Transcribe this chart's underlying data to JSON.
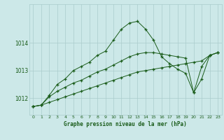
{
  "bg_color": "#cce8e8",
  "grid_color": "#aacccc",
  "line_color": "#1a5c1a",
  "title": "Graphe pression niveau de la mer (hPa)",
  "yticks": [
    1012,
    1013,
    1014
  ],
  "ylim": [
    1011.4,
    1015.4
  ],
  "xlim": [
    -0.5,
    23.5
  ],
  "series1_x": [
    0,
    1,
    2,
    3,
    4,
    5,
    6,
    7,
    8,
    9,
    10,
    11,
    12,
    13,
    14,
    15,
    16,
    17,
    18,
    19,
    20,
    21,
    22,
    23
  ],
  "series1_y": [
    1011.7,
    1011.75,
    1011.85,
    1011.95,
    1012.05,
    1012.15,
    1012.25,
    1012.35,
    1012.45,
    1012.55,
    1012.65,
    1012.75,
    1012.85,
    1012.95,
    1013.0,
    1013.05,
    1013.1,
    1013.15,
    1013.2,
    1013.25,
    1013.3,
    1013.35,
    1013.55,
    1013.65
  ],
  "series2_x": [
    0,
    1,
    2,
    3,
    4,
    5,
    6,
    7,
    8,
    9,
    10,
    11,
    12,
    13,
    14,
    15,
    16,
    17,
    18,
    19,
    20,
    21,
    22,
    23
  ],
  "series2_y": [
    1011.7,
    1011.75,
    1012.05,
    1012.25,
    1012.4,
    1012.55,
    1012.65,
    1012.8,
    1012.95,
    1013.05,
    1013.2,
    1013.35,
    1013.5,
    1013.6,
    1013.65,
    1013.65,
    1013.6,
    1013.55,
    1013.5,
    1013.45,
    1012.2,
    1013.15,
    1013.55,
    1013.65
  ],
  "series3_x": [
    0,
    1,
    2,
    3,
    4,
    5,
    6,
    7,
    8,
    9,
    10,
    11,
    12,
    13,
    14,
    15,
    16,
    17,
    18,
    19,
    20,
    21,
    22,
    23
  ],
  "series3_y": [
    1011.7,
    1011.75,
    1012.1,
    1012.5,
    1012.7,
    1013.0,
    1013.15,
    1013.3,
    1013.55,
    1013.7,
    1014.1,
    1014.5,
    1014.72,
    1014.78,
    1014.5,
    1014.1,
    1013.5,
    1013.25,
    1013.05,
    1012.9,
    1012.2,
    1012.7,
    1013.55,
    1013.65
  ]
}
